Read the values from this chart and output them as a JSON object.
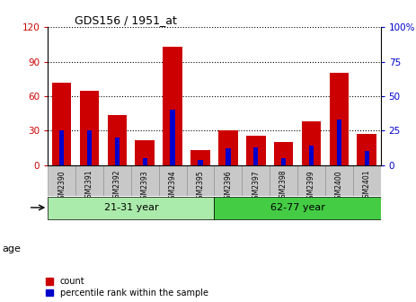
{
  "title": "GDS156 / 1951_at",
  "samples": [
    "GSM2390",
    "GSM2391",
    "GSM2392",
    "GSM2393",
    "GSM2394",
    "GSM2395",
    "GSM2396",
    "GSM2397",
    "GSM2398",
    "GSM2399",
    "GSM2400",
    "GSM2401"
  ],
  "count_values": [
    72,
    65,
    44,
    22,
    103,
    13,
    30,
    26,
    20,
    38,
    80,
    27
  ],
  "percentile_values": [
    25,
    25,
    20,
    5,
    40,
    4,
    12,
    13,
    5,
    14,
    33,
    10
  ],
  "groups": [
    {
      "label": "21-31 year",
      "start": 0,
      "end": 6
    },
    {
      "label": "62-77 year",
      "start": 6,
      "end": 12
    }
  ],
  "left_ylim": [
    0,
    120
  ],
  "right_ylim": [
    0,
    100
  ],
  "left_yticks": [
    0,
    30,
    60,
    90,
    120
  ],
  "right_yticks": [
    0,
    25,
    50,
    75,
    100
  ],
  "left_yticklabels": [
    "0",
    "30",
    "60",
    "90",
    "120"
  ],
  "right_yticklabels": [
    "0",
    "25",
    "50",
    "75",
    "100%"
  ],
  "bar_color_red": "#cc0000",
  "bar_color_blue": "#0000cc",
  "tick_bg_color": "#c8c8c8",
  "grid_color": "#000000",
  "age_label": "age",
  "legend_count": "count",
  "legend_percentile": "percentile rank within the sample",
  "left_axis_color": "#cc0000",
  "right_axis_color": "#0000cc",
  "group_colors": [
    "#aaeaaa",
    "#44cc44"
  ]
}
